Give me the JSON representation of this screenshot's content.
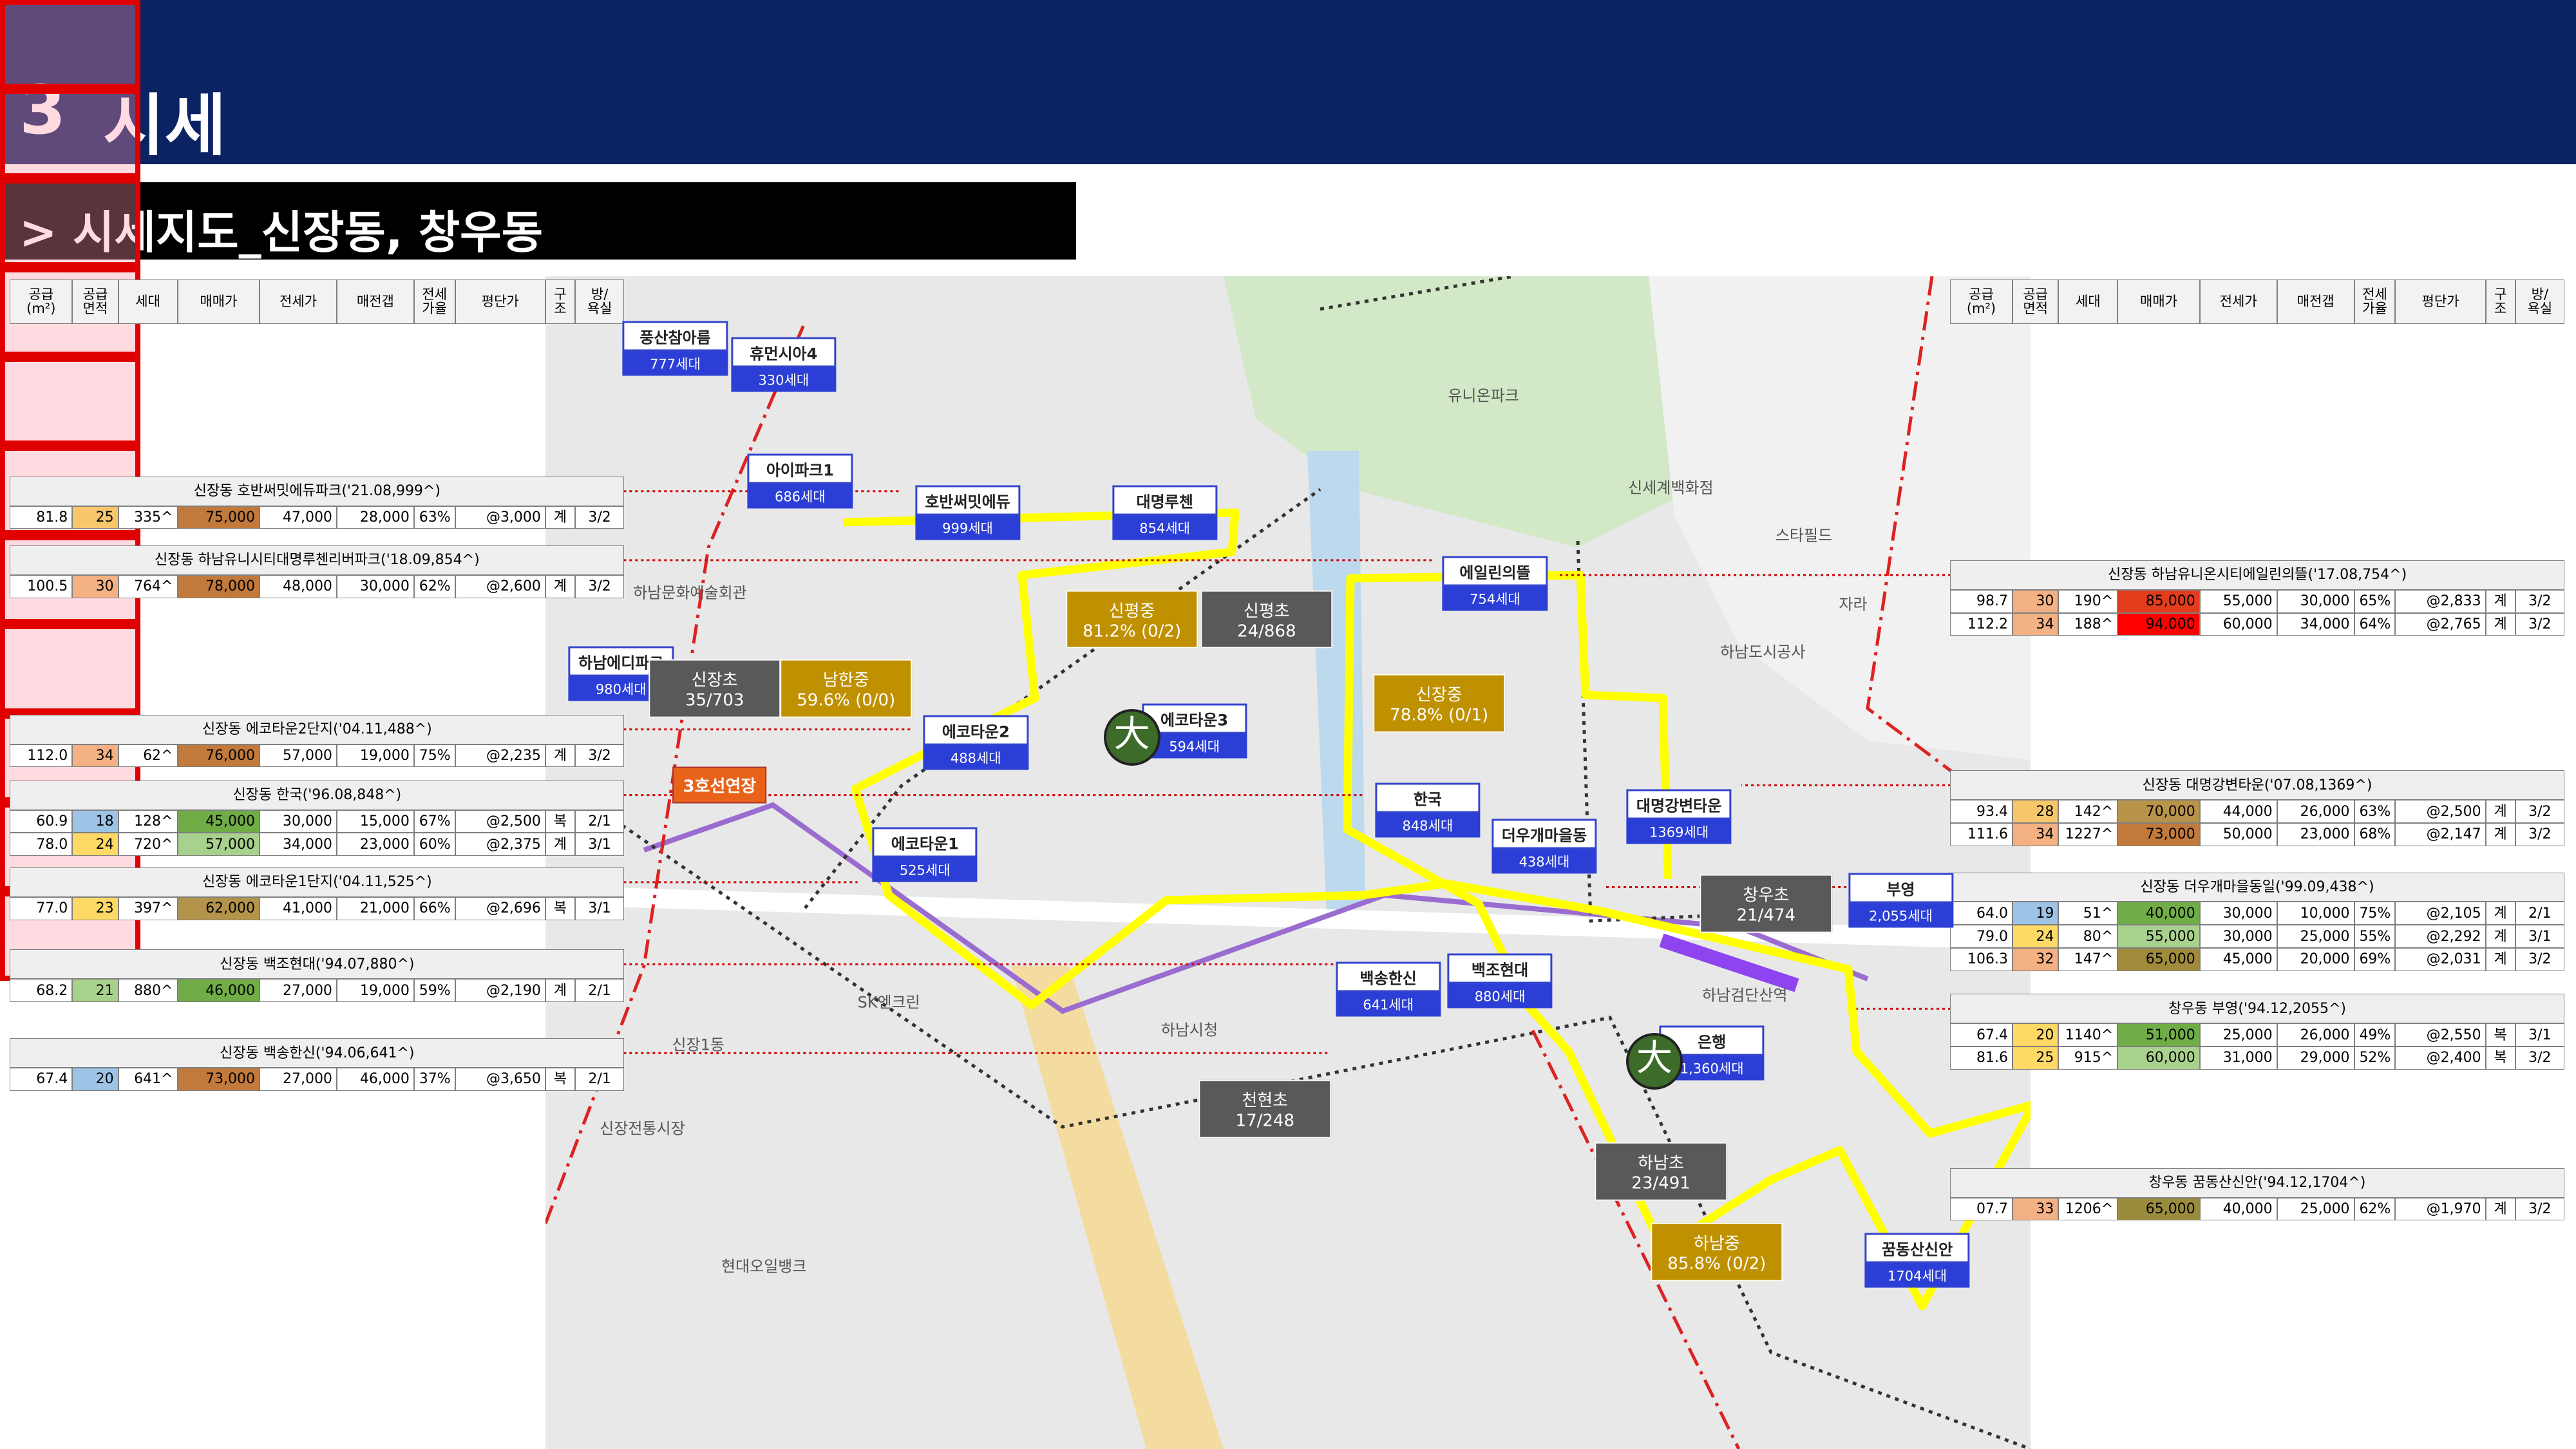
{
  "header": {
    "section_number": "3",
    "title": "시세"
  },
  "subtitle": "> 시세지도_신장동, 창우동",
  "table_header": [
    "공급\n(m²)",
    "공급\n면적",
    "세대",
    "매매가",
    "전세가",
    "매전갭",
    "전세\n가율",
    "평단가",
    "구\n조",
    "방/\n욕실"
  ],
  "left_tables": [
    {
      "title": "신장동 호반써밋에듀파크('21.08,999^)",
      "rows": [
        {
          "cells": [
            "81.8",
            "25",
            "335^",
            "75,000",
            "47,000",
            "28,000",
            "63%",
            "@3,000",
            "계",
            "3/2"
          ],
          "area_color": "#f8c76c",
          "price_color": "#c27a3c"
        }
      ]
    },
    {
      "title": "신장동 하남유니시티대명루첸리버파크('18.09,854^)",
      "rows": [
        {
          "cells": [
            "100.5",
            "30",
            "764^",
            "78,000",
            "48,000",
            "30,000",
            "62%",
            "@2,600",
            "계",
            "3/2"
          ],
          "area_color": "#f4b183",
          "price_color": "#c27a3c"
        }
      ]
    },
    {
      "title": "신장동 에코타운2단지('04.11,488^)",
      "rows": [
        {
          "cells": [
            "112.0",
            "34",
            "62^",
            "76,000",
            "57,000",
            "19,000",
            "75%",
            "@2,235",
            "계",
            "3/2"
          ],
          "area_color": "#f4b183",
          "price_color": "#c27a3c"
        }
      ]
    },
    {
      "title": "신장동 한국('96.08,848^)",
      "rows": [
        {
          "cells": [
            "60.9",
            "18",
            "128^",
            "45,000",
            "30,000",
            "15,000",
            "67%",
            "@2,500",
            "복",
            "2/1"
          ],
          "area_color": "#9dc3e6",
          "price_color": "#70ad47"
        },
        {
          "cells": [
            "78.0",
            "24",
            "720^",
            "57,000",
            "34,000",
            "23,000",
            "60%",
            "@2,375",
            "계",
            "3/1"
          ],
          "area_color": "#ffd966",
          "price_color": "#a9d18e"
        }
      ]
    },
    {
      "title": "신장동 에코타운1단지('04.11,525^)",
      "rows": [
        {
          "cells": [
            "77.0",
            "23",
            "397^",
            "62,000",
            "41,000",
            "21,000",
            "66%",
            "@2,696",
            "복",
            "3/1"
          ],
          "area_color": "#ffd966",
          "price_color": "#b3944a"
        }
      ]
    },
    {
      "title": "신장동 백조현대('94.07,880^)",
      "rows": [
        {
          "cells": [
            "68.2",
            "21",
            "880^",
            "46,000",
            "27,000",
            "19,000",
            "59%",
            "@2,190",
            "계",
            "2/1"
          ],
          "area_color": "#a9d18e",
          "price_color": "#70ad47"
        }
      ]
    },
    {
      "title": "신장동 백송한신('94.06,641^)",
      "rows": [
        {
          "cells": [
            "67.4",
            "20",
            "641^",
            "73,000",
            "27,000",
            "46,000",
            "37%",
            "@3,650",
            "복",
            "2/1"
          ],
          "area_color": "#9dc3e6",
          "price_color": "#c27a3c"
        }
      ]
    }
  ],
  "right_tables": [
    {
      "title": "신장동 하남유니온시티에일린의뜰('17.08,754^)",
      "rows": [
        {
          "cells": [
            "98.7",
            "30",
            "190^",
            "85,000",
            "55,000",
            "30,000",
            "65%",
            "@2,833",
            "계",
            "3/2"
          ],
          "area_color": "#f4b183",
          "price_color": "#e23c1c"
        },
        {
          "cells": [
            "112.2",
            "34",
            "188^",
            "94,000",
            "60,000",
            "34,000",
            "64%",
            "@2,765",
            "계",
            "3/2"
          ],
          "area_color": "#f4b183",
          "price_color": "#ff0000"
        }
      ]
    },
    {
      "title": "신장동 대명강변타운('07.08,1369^)",
      "rows": [
        {
          "cells": [
            "93.4",
            "28",
            "142^",
            "70,000",
            "44,000",
            "26,000",
            "63%",
            "@2,500",
            "계",
            "3/2"
          ],
          "area_color": "#f8c76c",
          "price_color": "#b8934a"
        },
        {
          "cells": [
            "111.6",
            "34",
            "1227^",
            "73,000",
            "50,000",
            "23,000",
            "68%",
            "@2,147",
            "계",
            "3/2"
          ],
          "area_color": "#f4b183",
          "price_color": "#c27a3c"
        }
      ]
    },
    {
      "title": "신장동 더우개마을동일('99.09,438^)",
      "rows": [
        {
          "cells": [
            "64.0",
            "19",
            "51^",
            "40,000",
            "30,000",
            "10,000",
            "75%",
            "@2,105",
            "계",
            "2/1"
          ],
          "area_color": "#9dc3e6",
          "price_color": "#70ad47"
        },
        {
          "cells": [
            "79.0",
            "24",
            "80^",
            "55,000",
            "30,000",
            "25,000",
            "55%",
            "@2,292",
            "계",
            "3/1"
          ],
          "area_color": "#ffd966",
          "price_color": "#a9d18e"
        },
        {
          "cells": [
            "106.3",
            "32",
            "147^",
            "65,000",
            "45,000",
            "20,000",
            "69%",
            "@2,031",
            "계",
            "3/2"
          ],
          "area_color": "#f4b183",
          "price_color": "#a08a3c"
        }
      ]
    },
    {
      "title": "창우동 부영('94.12,2055^)",
      "rows": [
        {
          "cells": [
            "67.4",
            "20",
            "1140^",
            "51,000",
            "25,000",
            "26,000",
            "49%",
            "@2,550",
            "복",
            "3/1"
          ],
          "area_color": "#ffd966",
          "price_color": "#70ad47"
        },
        {
          "cells": [
            "81.6",
            "25",
            "915^",
            "60,000",
            "31,000",
            "29,000",
            "52%",
            "@2,400",
            "복",
            "3/2"
          ],
          "area_color": "#ffd966",
          "price_color": "#a9d18e"
        }
      ]
    },
    {
      "title": "창우동 꿈동산신안('94.12,1704^)",
      "rows": [
        {
          "cells": [
            "07.7",
            "33",
            "1206^",
            "65,000",
            "40,000",
            "25,000",
            "62%",
            "@1,970",
            "계",
            "3/2"
          ],
          "area_color": "#f4b183",
          "price_color": "#9a8c3c"
        }
      ]
    }
  ],
  "map": {
    "complexes": [
      {
        "name": "호반써밋에듀",
        "households": "999세대",
        "highlighted": true
      },
      {
        "name": "대명루첸",
        "households": "854세대",
        "highlighted": true
      },
      {
        "name": "에일린의뜰",
        "households": "754세대",
        "highlighted": true
      },
      {
        "name": "에코타운2",
        "households": "488세대",
        "highlighted": true
      },
      {
        "name": "에코타운1",
        "households": "525세대",
        "highlighted": true
      },
      {
        "name": "한국",
        "households": "848세대",
        "highlighted": true
      },
      {
        "name": "더우개마을동",
        "households": "438세대",
        "highlighted": true
      },
      {
        "name": "대명강변타운",
        "households": "1369세대",
        "highlighted": true
      },
      {
        "name": "백송한신",
        "households": "641세대",
        "highlighted": true
      },
      {
        "name": "백조현대",
        "households": "880세대",
        "highlighted": true
      },
      {
        "name": "꿈동산신안",
        "households": "1704세대",
        "highlighted": true
      },
      {
        "name": "풍산참아름",
        "households": "777세대",
        "highlighted": false
      },
      {
        "name": "휴먼시아4",
        "households": "330세대",
        "highlighted": false
      },
      {
        "name": "아이파크1",
        "households": "686세대",
        "highlighted": false
      },
      {
        "name": "하남에디파크",
        "households": "980세대",
        "highlighted": false
      },
      {
        "name": "에코타운3",
        "households": "594세대",
        "highlighted": false
      },
      {
        "name": "부영",
        "households": "2,055세대",
        "highlighted": false
      },
      {
        "name": "은행",
        "households": "1,360세대",
        "highlighted": false
      }
    ],
    "schools": [
      {
        "name": "신장초",
        "stat": "35/703",
        "color": "#595959"
      },
      {
        "name": "남한중",
        "stat": "59.6% (0/0)",
        "color": "#bf9000"
      },
      {
        "name": "신평중",
        "stat": "81.2% (0/2)",
        "color": "#bf9000"
      },
      {
        "name": "신평초",
        "stat": "24/868",
        "color": "#595959"
      },
      {
        "name": "신장중",
        "stat": "78.8% (0/1)",
        "color": "#bf9000"
      },
      {
        "name": "창우초",
        "stat": "21/474",
        "color": "#595959"
      },
      {
        "name": "천현초",
        "stat": "17/248",
        "color": "#595959"
      },
      {
        "name": "하남초",
        "stat": "23/491",
        "color": "#595959"
      },
      {
        "name": "하남중",
        "stat": "85.8% (0/2)",
        "color": "#bf9000"
      }
    ],
    "school_icon": "大",
    "line_extension": "3호선연장",
    "places": [
      "신세계백화점",
      "스타필드",
      "하남도시공사",
      "유니온파크",
      "하남시청",
      "하남검단산역",
      "신장1동",
      "SK엔크린",
      "신장전통시장",
      "현대오일뱅크",
      "자라",
      "하남문화예술회관"
    ]
  }
}
